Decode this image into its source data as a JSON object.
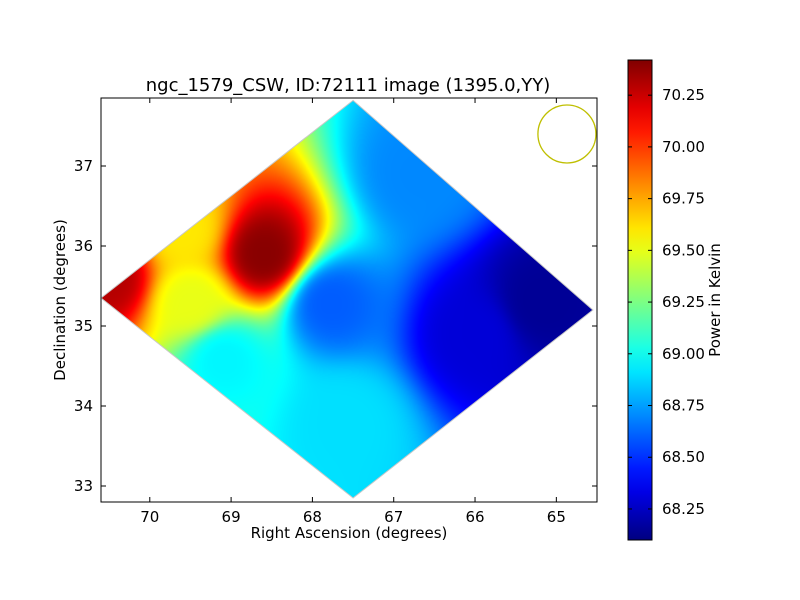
{
  "chart_data": {
    "type": "heatmap",
    "title": "ngc_1579_CSW, ID:72111 image (1395.0,YY)",
    "xlabel": "Right Ascension (degrees)",
    "ylabel": "Declination (degrees)",
    "xlim": [
      70.6,
      64.5
    ],
    "ylim": [
      32.8,
      37.85
    ],
    "x_ticks": [
      70,
      69,
      68,
      67,
      66,
      65
    ],
    "y_ticks": [
      33,
      34,
      35,
      36,
      37
    ],
    "x_tick_labels": [
      "70",
      "69",
      "68",
      "67",
      "66",
      "65"
    ],
    "y_tick_labels": [
      "33",
      "34",
      "35",
      "36",
      "37"
    ],
    "map_footprint": {
      "shape": "diamond",
      "top": {
        "ra": 67.5,
        "dec": 37.82
      },
      "left": {
        "ra": 70.6,
        "dec": 35.35
      },
      "bottom": {
        "ra": 67.5,
        "dec": 32.85
      },
      "right": {
        "ra": 64.55,
        "dec": 35.2
      }
    },
    "beam_circle": {
      "ra": 64.87,
      "dec": 37.4,
      "color": "#bfbf00"
    },
    "colorbar": {
      "label": "Power in Kelvin",
      "colormap": "jet",
      "min": 68.1,
      "max": 70.42,
      "ticks": [
        68.25,
        68.5,
        68.75,
        69.0,
        69.25,
        69.5,
        69.75,
        70.0,
        70.25
      ],
      "tick_labels": [
        "68.25",
        "68.50",
        "68.75",
        "69.00",
        "69.25",
        "69.50",
        "69.75",
        "70.00",
        "70.25"
      ]
    },
    "features": [
      {
        "ra": 70.5,
        "dec": 35.6,
        "value": 70.3
      },
      {
        "ra": 68.6,
        "dec": 35.9,
        "value": 70.4
      },
      {
        "ra": 69.6,
        "dec": 36.2,
        "value": 69.6
      },
      {
        "ra": 69.5,
        "dec": 35.3,
        "value": 69.5
      },
      {
        "ra": 66.7,
        "dec": 36.9,
        "value": 68.7
      },
      {
        "ra": 65.2,
        "dec": 35.3,
        "value": 68.15
      },
      {
        "ra": 66.0,
        "dec": 34.9,
        "value": 68.3
      },
      {
        "ra": 67.6,
        "dec": 33.8,
        "value": 68.9
      },
      {
        "ra": 69.1,
        "dec": 34.6,
        "value": 68.95
      },
      {
        "ra": 67.8,
        "dec": 35.3,
        "value": 68.6
      }
    ]
  }
}
